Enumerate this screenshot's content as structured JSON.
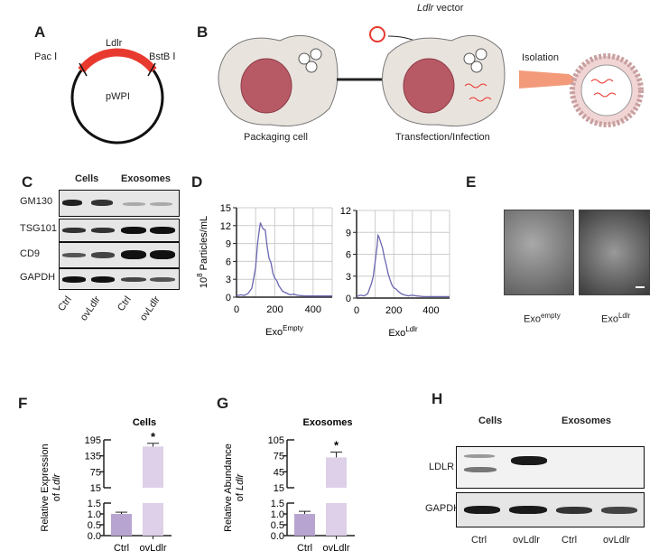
{
  "panels": {
    "A": "A",
    "B": "B",
    "C": "C",
    "D": "D",
    "E": "E",
    "F": "F",
    "G": "G",
    "H": "H"
  },
  "panelA": {
    "pac": "Pac Ⅰ",
    "ldlr": "Ldlr",
    "bstb": "BstB Ⅰ",
    "plasmid": "pWPI",
    "insert_color": "#e8392f"
  },
  "panelB": {
    "vector": "Ldlr",
    "vector_suffix": " vector",
    "isolation": "Isolation",
    "packaging": "Packaging cell",
    "transfection": "Transfection/Infection"
  },
  "panelC": {
    "cells": "Cells",
    "exosomes": "Exosomes",
    "rows": [
      "GM130",
      "TSG101",
      "CD9",
      "GAPDH"
    ],
    "lanes": [
      "Ctrl",
      "ovLdlr",
      "Ctrl",
      "ovLdlr"
    ]
  },
  "panelE": {
    "label1_base": "Exo",
    "label1_sup": "empty",
    "label2_base": "Exo",
    "label2_sup": "Ldlr"
  },
  "panelH": {
    "cells": "Cells",
    "exosomes": "Exosomes",
    "rows": [
      "LDLR",
      "GAPDH"
    ],
    "lanes": [
      "Ctrl",
      "ovLdlr",
      "Ctrl",
      "ovLdlr"
    ]
  },
  "chart_data": [
    {
      "type": "line",
      "panel": "D-left",
      "ylabel": "10^8 Particles/mL",
      "ylabel_base": "10",
      "ylabel_sup": "8",
      "ylabel_rest": " Particles/mL",
      "xlabel_base": "Exo",
      "xlabel_sup": "Empty",
      "xlim": [
        0,
        500
      ],
      "ylim": [
        0,
        15
      ],
      "xticks": [
        "0",
        "200",
        "400"
      ],
      "yticks": [
        "0",
        "3",
        "6",
        "9",
        "12",
        "15"
      ],
      "grid": true,
      "color": "#6a66b0",
      "x": [
        0,
        20,
        40,
        60,
        80,
        100,
        110,
        120,
        125,
        130,
        140,
        150,
        160,
        170,
        180,
        190,
        200,
        210,
        220,
        240,
        260,
        280,
        300,
        320,
        360,
        400,
        450,
        500
      ],
      "y": [
        0.2,
        0.4,
        0.3,
        0.6,
        1.5,
        5,
        9,
        11.5,
        12.5,
        12,
        11.4,
        11.3,
        8.5,
        6.5,
        5.8,
        4,
        3.2,
        2.8,
        2,
        1,
        0.7,
        0.4,
        0.5,
        0.3,
        0.2,
        0.2,
        0.2,
        0.2
      ]
    },
    {
      "type": "line",
      "panel": "D-right",
      "xlabel_base": "Exo",
      "xlabel_sup": "Ldlr",
      "xlim": [
        0,
        500
      ],
      "ylim": [
        0,
        12
      ],
      "xticks": [
        "0",
        "200",
        "400"
      ],
      "yticks": [
        "0",
        "3",
        "6",
        "9",
        "12"
      ],
      "grid": true,
      "color": "#6a66b0",
      "x": [
        0,
        20,
        40,
        60,
        80,
        90,
        100,
        110,
        115,
        120,
        130,
        140,
        150,
        160,
        170,
        180,
        190,
        200,
        210,
        220,
        240,
        260,
        280,
        300,
        320,
        360,
        400,
        450,
        500
      ],
      "y": [
        0.2,
        0.4,
        0.3,
        0.6,
        2,
        3,
        5,
        7,
        8.6,
        8.4,
        7.6,
        6.8,
        5.5,
        4.5,
        3.3,
        2.5,
        1.8,
        1.4,
        1.3,
        1,
        0.6,
        0.4,
        0.3,
        0.4,
        0.3,
        0.2,
        0.2,
        0.2,
        0.2
      ]
    },
    {
      "type": "bar",
      "panel": "F",
      "title": "Cells",
      "ylabel_line1": "Relative Expression",
      "ylabel_line2_pre": "of ",
      "ylabel_line2_it": "Ldlr",
      "categories": [
        "Ctrl",
        "ovLdlr"
      ],
      "values": [
        1.0,
        170
      ],
      "errors": [
        0.08,
        12
      ],
      "significance": [
        "",
        "*"
      ],
      "upper_yticks": [
        "15",
        "75",
        "135",
        "195"
      ],
      "upper_ylim": [
        15,
        195
      ],
      "lower_yticks": [
        "0.0",
        "0.5",
        "1.0",
        "1.5"
      ],
      "lower_ylim": [
        0,
        1.5
      ],
      "colors": [
        "#b8a4d0",
        "#ddd0e8"
      ]
    },
    {
      "type": "bar",
      "panel": "G",
      "title": "Exosomes",
      "ylabel_line1": "Relative Abundance",
      "ylabel_line2_pre": "of ",
      "ylabel_line2_it": "Ldlr",
      "categories": [
        "Ctrl",
        "ovLdlr"
      ],
      "values": [
        1.0,
        72
      ],
      "errors": [
        0.12,
        10
      ],
      "significance": [
        "",
        "*"
      ],
      "upper_yticks": [
        "15",
        "45",
        "75",
        "105"
      ],
      "upper_ylim": [
        15,
        105
      ],
      "lower_yticks": [
        "0.0",
        "0.5",
        "1.0",
        "1.5"
      ],
      "lower_ylim": [
        0,
        1.5
      ],
      "colors": [
        "#b8a4d0",
        "#ddd0e8"
      ]
    }
  ]
}
